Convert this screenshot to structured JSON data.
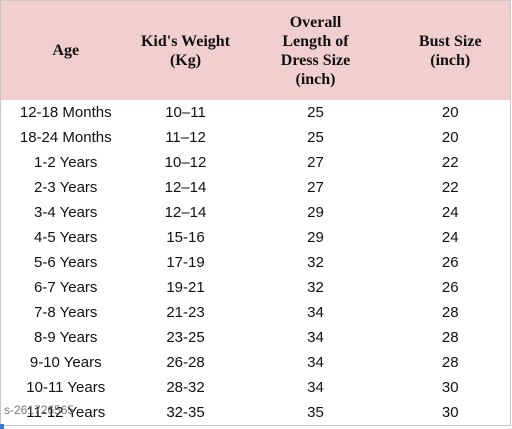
{
  "table": {
    "header": [
      [
        "Age"
      ],
      [
        "Kid's Weight",
        "(Kg)"
      ],
      [
        "Overall",
        "Length of",
        "Dress Size",
        "(inch)"
      ],
      [
        "Bust Size",
        "(inch)"
      ]
    ],
    "rows": [
      [
        "12-18 Months",
        "10–11",
        "25",
        "20"
      ],
      [
        "18-24 Months",
        "11–12",
        "25",
        "20"
      ],
      [
        "1-2 Years",
        "10–12",
        "27",
        "22"
      ],
      [
        "2-3 Years",
        "12–14",
        "27",
        "22"
      ],
      [
        "3-4 Years",
        "12–14",
        "29",
        "24"
      ],
      [
        "4-5 Years",
        "15-16",
        "29",
        "24"
      ],
      [
        "5-6 Years",
        "17-19",
        "32",
        "26"
      ],
      [
        "6-7 Years",
        "19-21",
        "32",
        "26"
      ],
      [
        "7-8 Years",
        "21-23",
        "34",
        "28"
      ],
      [
        "8-9 Years",
        "23-25",
        "34",
        "28"
      ],
      [
        "9-10 Years",
        "26-28",
        "34",
        "28"
      ],
      [
        "10-11 Years",
        "28-32",
        "34",
        "30"
      ],
      [
        "11-12 Years",
        "32-35",
        "35",
        "30"
      ]
    ]
  },
  "watermark": "s-261726565"
}
